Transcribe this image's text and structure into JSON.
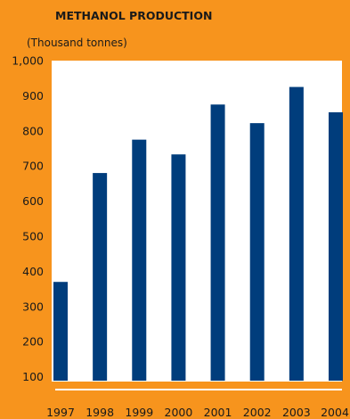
{
  "chart_data": {
    "type": "bar",
    "title": "METHANOL PRODUCTION",
    "unit_label": "(Thousand tonnes)",
    "categories": [
      "1997",
      "1998",
      "1999",
      "2000",
      "2001",
      "2002",
      "2003",
      "2004"
    ],
    "values": [
      370,
      680,
      775,
      733,
      875,
      822,
      925,
      853
    ],
    "yticks": [
      "1,000",
      "900",
      "800",
      "700",
      "600",
      "500",
      "400",
      "300",
      "200",
      "100"
    ],
    "ylim": [
      0,
      1000
    ],
    "grid": false,
    "colors": {
      "background": "#f7941d",
      "plot_area": "#ffffff",
      "bar": "#003d7c",
      "baseline": "#ffffff"
    }
  }
}
